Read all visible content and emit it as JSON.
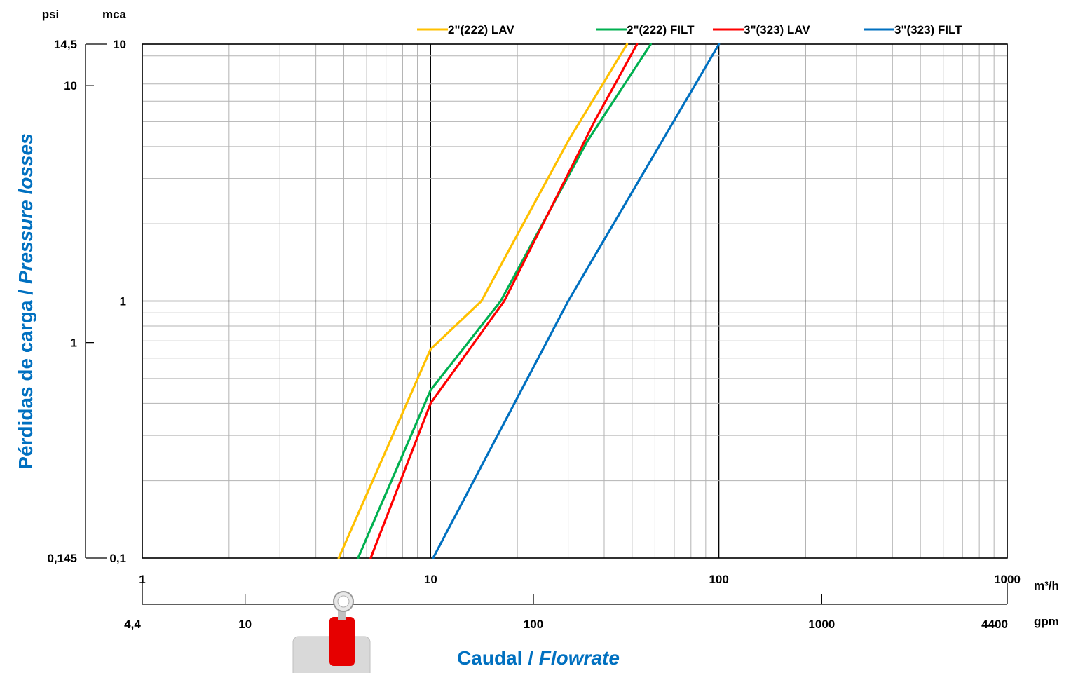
{
  "chart_data": {
    "type": "line",
    "xscale": "log",
    "yscale": "log",
    "x_unit": "m³/h",
    "y_unit": "mca",
    "xlim": [
      1,
      1000
    ],
    "ylim": [
      0.1,
      10
    ],
    "xticks": [
      "1",
      "10",
      "100",
      "1000"
    ],
    "yticks": [
      "0,1",
      "1",
      "10"
    ],
    "secondary_x": {
      "unit": "gpm",
      "ticks": [
        "4,4",
        "10",
        "100",
        "1000",
        "4400"
      ]
    },
    "secondary_y": {
      "unit": "psi",
      "ticks": [
        "0,145",
        "1",
        "10",
        "14,5"
      ]
    },
    "ylabel_main": "Pérdidas de carga",
    "ylabel_italic": "Pressure losses",
    "xlabel_main": "Caudal",
    "xlabel_italic": "Flowrate",
    "grid": true,
    "legend_position": "top",
    "series": [
      {
        "name": "2\"(222) LAV",
        "color": "#ffc000",
        "points": [
          [
            4.8,
            0.1
          ],
          [
            10,
            0.65
          ],
          [
            15,
            1.0
          ],
          [
            30,
            4.2
          ],
          [
            48,
            10
          ]
        ]
      },
      {
        "name": "2\"(222) FILT",
        "color": "#00b050",
        "points": [
          [
            5.6,
            0.1
          ],
          [
            10,
            0.45
          ],
          [
            17.5,
            1.0
          ],
          [
            35,
            4.2
          ],
          [
            58,
            10
          ]
        ]
      },
      {
        "name": "3\"(323) LAV",
        "color": "#ff0000",
        "points": [
          [
            6.2,
            0.1
          ],
          [
            10,
            0.4
          ],
          [
            18,
            1.0
          ],
          [
            37,
            5.0
          ],
          [
            52,
            10
          ]
        ]
      },
      {
        "name": "3\"(323) FILT",
        "color": "#0070c0",
        "points": [
          [
            10.2,
            0.1
          ],
          [
            30,
            1.0
          ],
          [
            100,
            10
          ]
        ]
      }
    ]
  }
}
